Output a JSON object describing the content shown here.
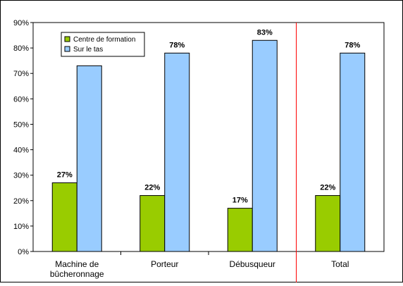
{
  "chart_data": {
    "type": "bar",
    "categories": [
      [
        "Machine de",
        "bûcheronnage"
      ],
      [
        "Porteur"
      ],
      [
        "Débusqueur"
      ],
      [
        "Total"
      ]
    ],
    "series": [
      {
        "name": "Centre de formation",
        "color": "#99cc00",
        "values": [
          27,
          22,
          17,
          22
        ],
        "labels": [
          "27%",
          "22%",
          "17%",
          "22%"
        ]
      },
      {
        "name": "Sur le tas",
        "color": "#99ccff",
        "values": [
          73,
          78,
          83,
          78
        ],
        "labels": [
          "",
          "78%",
          "83%",
          "78%"
        ]
      }
    ],
    "ylim": [
      0,
      90
    ],
    "yticks": [
      "0%",
      "10%",
      "20%",
      "30%",
      "40%",
      "50%",
      "60%",
      "70%",
      "80%",
      "90%"
    ],
    "grid": false,
    "legend": "top-left",
    "separator_after_category": 2,
    "separator_color": "#ff0000",
    "title": "",
    "xlabel": "",
    "ylabel": ""
  }
}
